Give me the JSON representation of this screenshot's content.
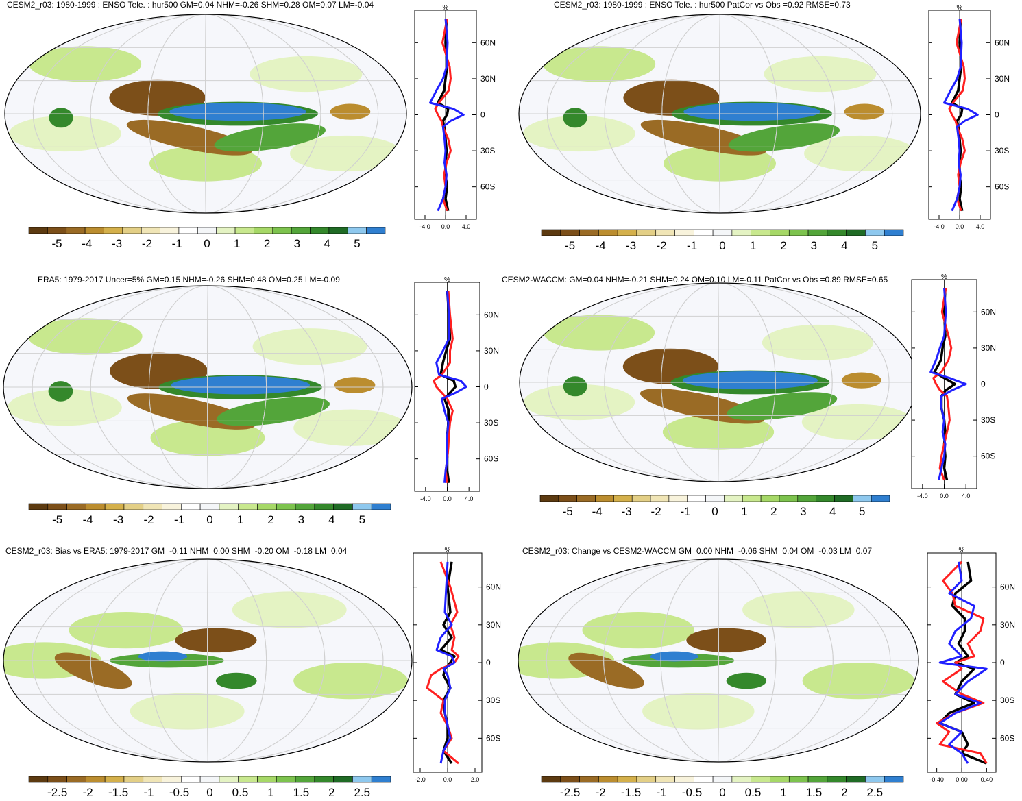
{
  "colorbar": {
    "colors": [
      "#5c3a10",
      "#7c4f19",
      "#9a6b25",
      "#bb8d2f",
      "#d4b04b",
      "#e3cf86",
      "#f0e5b6",
      "#f8f3dc",
      "#ffffff",
      "#f4f6f8",
      "#e4f3c3",
      "#c8e88e",
      "#a6d867",
      "#7dc34e",
      "#53a53a",
      "#34882b",
      "#1f6b25",
      "#8ec8ee",
      "#2f7fd0"
    ],
    "ticks_a": [
      "-5",
      "-4",
      "-3",
      "-2",
      "-1",
      "0",
      "1",
      "2",
      "3",
      "4",
      "5"
    ],
    "ticks_b": [
      "-2.5",
      "-2",
      "-1.5",
      "-1",
      "-0.5",
      "0",
      "0.5",
      "1",
      "1.5",
      "2",
      "2.5"
    ]
  },
  "profile_labels": {
    "unit": "%",
    "lat_ticks": [
      "60N",
      "30N",
      "0",
      "30S",
      "60S"
    ],
    "x_ticks_a": [
      "-4.0",
      "0.0",
      "4.0"
    ],
    "x_ticks_b": [
      "-2.0",
      "0.0",
      "2.0"
    ],
    "x_ticks_c": [
      "-0.40",
      "0.00",
      "0.40"
    ],
    "series_colors": {
      "black": "#000000",
      "red": "#ff2020",
      "blue": "#2020ff"
    }
  },
  "panels": [
    {
      "title": "CESM2_r03: 1980-1999 : ENSO Tele. : hur500 GM=0.04 NHM=-0.26 SHM=0.28 OM=0.07 LM=-0.04"
    },
    {
      "title": "CESM2_r03: 1980-1999 : ENSO Tele. : hur500 PatCor vs Obs =0.92 RMSE=0.73"
    },
    {
      "title": "ERA5: 1979-2017 Uncer=5% GM=0.15 NHM=-0.26 SHM=0.48 OM=0.25 LM=-0.09"
    },
    {
      "title": "CESM2-WACCM: GM=0.04 NHM=-0.21 SHM=0.24 OM=0.10 LM=-0.11 PatCor vs Obs =0.89 RMSE=0.65"
    },
    {
      "title": "CESM2_r03: Bias vs ERA5: 1979-2017 GM=-0.11 NHM=0.00 SHM=-0.20 OM=-0.18 LM=0.04"
    },
    {
      "title": "CESM2_r03: Change vs CESM2-WACCM GM=0.00 NHM=-0.06 SHM=0.04 OM=-0.03 LM=0.07"
    }
  ],
  "chart_data": [
    {
      "type": "line",
      "description_role": "zonal-mean profile panel 1",
      "y_lat": [
        80,
        60,
        40,
        30,
        20,
        10,
        5,
        0,
        -5,
        -10,
        -20,
        -30,
        -40,
        -50,
        -60,
        -70,
        -80
      ],
      "xlim": [
        -6,
        6
      ],
      "series": [
        {
          "color": "black",
          "values": [
            0.2,
            0.0,
            0.3,
            0.0,
            -0.3,
            -1.5,
            0.5,
            0.3,
            -0.5,
            -0.3,
            0.0,
            0.2,
            0.0,
            0.0,
            0.3,
            0.0,
            0.5
          ]
        },
        {
          "color": "red",
          "values": [
            0.3,
            -0.6,
            0.8,
            1.0,
            0.6,
            -1.3,
            -2.0,
            -1.5,
            -0.8,
            -0.5,
            0.5,
            1.0,
            0.2,
            -0.3,
            0.0,
            -0.5,
            0.3
          ]
        },
        {
          "color": "blue",
          "values": [
            0.0,
            0.4,
            0.2,
            -0.5,
            -1.8,
            -3.0,
            1.5,
            3.5,
            1.0,
            -0.5,
            -0.2,
            0.0,
            -0.2,
            0.2,
            0.0,
            -0.5,
            -1.5
          ]
        }
      ]
    },
    {
      "type": "line",
      "description_role": "zonal-mean profile panel 2",
      "y_lat": [
        80,
        60,
        40,
        30,
        20,
        10,
        5,
        0,
        -5,
        -10,
        -20,
        -30,
        -40,
        -50,
        -60,
        -70,
        -80
      ],
      "xlim": [
        -6,
        6
      ],
      "series": [
        {
          "color": "black",
          "values": [
            0.2,
            0.0,
            0.3,
            0.0,
            -0.3,
            -1.5,
            0.5,
            0.3,
            -0.5,
            -0.3,
            0.0,
            0.2,
            0.0,
            0.0,
            0.3,
            0.0,
            0.5
          ]
        },
        {
          "color": "red",
          "values": [
            0.3,
            -0.6,
            0.8,
            1.0,
            0.6,
            -1.3,
            -2.0,
            -1.5,
            -0.8,
            -0.5,
            0.5,
            1.0,
            0.2,
            -0.3,
            0.0,
            -0.5,
            0.3
          ]
        },
        {
          "color": "blue",
          "values": [
            0.0,
            0.4,
            0.2,
            -0.5,
            -1.8,
            -3.0,
            1.5,
            3.5,
            1.0,
            -0.5,
            -0.2,
            0.0,
            -0.2,
            0.2,
            0.0,
            -0.5,
            -1.5
          ]
        }
      ]
    },
    {
      "type": "line",
      "description_role": "zonal-mean profile panel 3",
      "y_lat": [
        80,
        60,
        40,
        30,
        20,
        10,
        5,
        0,
        -5,
        -10,
        -20,
        -30,
        -40,
        -50,
        -60,
        -70,
        -80
      ],
      "xlim": [
        -6,
        6
      ],
      "series": [
        {
          "color": "black",
          "values": [
            0.0,
            0.3,
            0.5,
            -0.2,
            -0.8,
            -1.2,
            1.2,
            1.5,
            0.5,
            -0.5,
            0.3,
            0.2,
            0.0,
            0.1,
            0.0,
            0.0,
            0.3
          ]
        },
        {
          "color": "red",
          "values": [
            0.2,
            0.5,
            1.0,
            0.5,
            0.5,
            -1.0,
            -2.5,
            -2.0,
            -1.0,
            0.0,
            1.0,
            0.5,
            0.3,
            0.2,
            0.0,
            -0.3,
            0.0
          ]
        },
        {
          "color": "blue",
          "values": [
            0.0,
            0.3,
            0.3,
            -0.8,
            -2.0,
            -1.5,
            2.5,
            3.5,
            1.5,
            -1.0,
            -0.5,
            0.2,
            0.0,
            0.0,
            0.0,
            -0.3,
            -0.5
          ]
        }
      ]
    },
    {
      "type": "line",
      "description_role": "zonal-mean profile panel 4",
      "y_lat": [
        80,
        60,
        40,
        30,
        20,
        10,
        5,
        0,
        -5,
        -10,
        -20,
        -30,
        -40,
        -50,
        -60,
        -70,
        -80
      ],
      "xlim": [
        -6,
        6
      ],
      "series": [
        {
          "color": "black",
          "values": [
            0.2,
            0.0,
            0.2,
            -0.3,
            -0.6,
            -1.8,
            0.0,
            2.0,
            0.3,
            -0.5,
            -0.5,
            0.0,
            0.2,
            0.0,
            0.2,
            0.0,
            0.5
          ]
        },
        {
          "color": "red",
          "values": [
            0.3,
            -0.4,
            0.8,
            1.3,
            0.8,
            -0.5,
            -2.0,
            -1.5,
            -0.8,
            0.5,
            0.8,
            1.0,
            0.5,
            0.0,
            -0.5,
            -0.8,
            0.0
          ]
        },
        {
          "color": "blue",
          "values": [
            0.0,
            0.3,
            0.0,
            -0.8,
            -1.5,
            -2.5,
            1.0,
            4.0,
            1.5,
            -0.5,
            -0.5,
            0.0,
            -0.3,
            0.2,
            0.0,
            -0.5,
            -1.0
          ]
        }
      ]
    },
    {
      "type": "line",
      "description_role": "zonal-mean profile panel 5",
      "y_lat": [
        80,
        60,
        40,
        30,
        20,
        10,
        5,
        0,
        -5,
        -10,
        -20,
        -30,
        -40,
        -50,
        -60,
        -70,
        -80
      ],
      "xlim": [
        -2.5,
        2.5
      ],
      "series": [
        {
          "color": "black",
          "values": [
            0.3,
            0.0,
            0.2,
            -0.3,
            0.3,
            -0.5,
            0.5,
            0.2,
            -0.2,
            -0.3,
            0.2,
            -0.3,
            -0.2,
            0.0,
            0.0,
            -0.3,
            0.3
          ]
        },
        {
          "color": "red",
          "values": [
            -0.5,
            0.2,
            0.7,
            0.2,
            0.5,
            0.3,
            0.8,
            0.5,
            -0.5,
            -1.2,
            -1.5,
            -0.3,
            -0.5,
            0.0,
            0.3,
            -0.3,
            0.8
          ]
        },
        {
          "color": "blue",
          "values": [
            0.0,
            -0.1,
            -0.2,
            0.3,
            -0.5,
            -0.8,
            0.3,
            0.5,
            -0.3,
            0.0,
            0.2,
            -0.2,
            -0.2,
            0.0,
            0.2,
            -0.3,
            -0.5
          ]
        }
      ]
    },
    {
      "type": "line",
      "description_role": "zonal-mean profile panel 6",
      "y_lat": [
        80,
        65,
        55,
        45,
        35,
        25,
        15,
        5,
        0,
        -5,
        -15,
        -25,
        -32,
        -40,
        -48,
        -55,
        -65,
        -72,
        -80
      ],
      "xlim": [
        -0.55,
        0.55
      ],
      "series": [
        {
          "color": "black",
          "values": [
            0.1,
            0.15,
            -0.1,
            -0.15,
            0.05,
            0.05,
            -0.05,
            0.1,
            -0.1,
            0.2,
            0.0,
            -0.1,
            0.2,
            -0.2,
            -0.35,
            0.0,
            0.1,
            0.0,
            0.4
          ]
        },
        {
          "color": "red",
          "values": [
            0.0,
            -0.3,
            -0.15,
            -0.1,
            0.35,
            0.3,
            0.1,
            0.2,
            -0.1,
            0.0,
            -0.3,
            0.0,
            0.35,
            -0.1,
            -0.4,
            -0.2,
            -0.35,
            0.3,
            0.4
          ]
        },
        {
          "color": "blue",
          "values": [
            -0.05,
            0.0,
            -0.2,
            0.2,
            0.15,
            -0.1,
            -0.2,
            0.0,
            -0.35,
            0.4,
            0.1,
            -0.1,
            0.3,
            -0.1,
            -0.35,
            0.0,
            -0.2,
            0.0,
            0.1
          ]
        }
      ]
    }
  ]
}
